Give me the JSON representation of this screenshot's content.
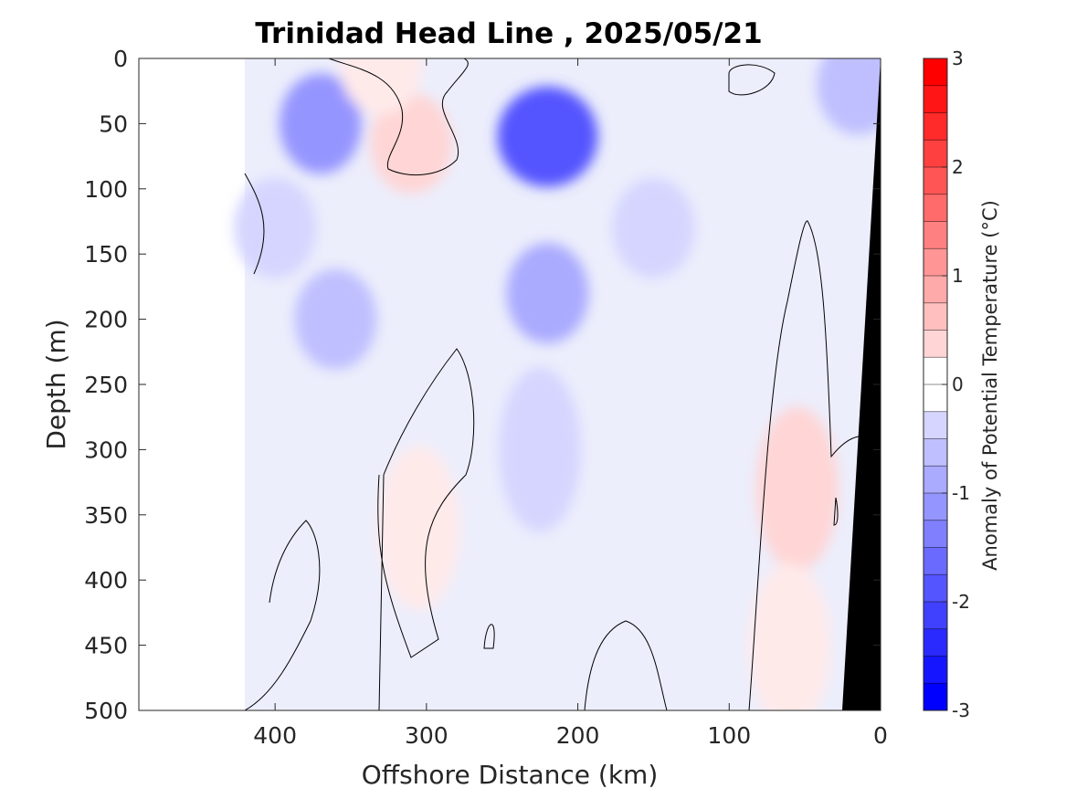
{
  "chart_data": {
    "type": "heatmap",
    "title": "Trinidad Head Line , 2025/05/21",
    "xlabel": "Offshore Distance (km)",
    "ylabel": "Depth (m)",
    "xlim": [
      490,
      0
    ],
    "ylim": [
      0,
      500
    ],
    "x_ticks": [
      400,
      300,
      200,
      100,
      0
    ],
    "y_ticks": [
      0,
      50,
      100,
      150,
      200,
      250,
      300,
      350,
      400,
      450,
      500
    ],
    "x_tick_labels": [
      "400",
      "300",
      "200",
      "100",
      "0"
    ],
    "y_tick_labels": [
      "0",
      "50",
      "100",
      "150",
      "200",
      "250",
      "300",
      "350",
      "400",
      "450",
      "500"
    ],
    "data_extent_km": [
      420,
      0
    ],
    "colorbar": {
      "label": "Anomaly of Potential Temperature (°C)",
      "range": [
        -3,
        3
      ],
      "step": 0.25,
      "ticks": [
        3,
        2,
        1,
        0,
        -1,
        -2,
        -3
      ],
      "tick_labels": [
        "3",
        "2",
        "1",
        "0",
        "-1",
        "-2",
        "-3"
      ],
      "colormap": "blue-white-red"
    },
    "contour_line": {
      "level": 0,
      "color": "#000000"
    },
    "bathymetry_color": "#000000",
    "features": [
      {
        "x": 220,
        "depth": 60,
        "value": -2.0
      },
      {
        "x": 220,
        "depth": 180,
        "value": -1.0
      },
      {
        "x": 225,
        "depth": 300,
        "value": -0.6
      },
      {
        "x": 370,
        "depth": 50,
        "value": -1.2
      },
      {
        "x": 360,
        "depth": 200,
        "value": -0.8
      },
      {
        "x": 400,
        "depth": 130,
        "value": -0.6
      },
      {
        "x": 310,
        "depth": 65,
        "value": 0.5
      },
      {
        "x": 330,
        "depth": 5,
        "value": 0.3
      },
      {
        "x": 305,
        "depth": 360,
        "value": 0.3
      },
      {
        "x": 55,
        "depth": 330,
        "value": 0.5
      },
      {
        "x": 60,
        "depth": 450,
        "value": 0.3
      },
      {
        "x": 150,
        "depth": 130,
        "value": -0.5
      },
      {
        "x": 15,
        "depth": 20,
        "value": -0.8
      }
    ]
  }
}
